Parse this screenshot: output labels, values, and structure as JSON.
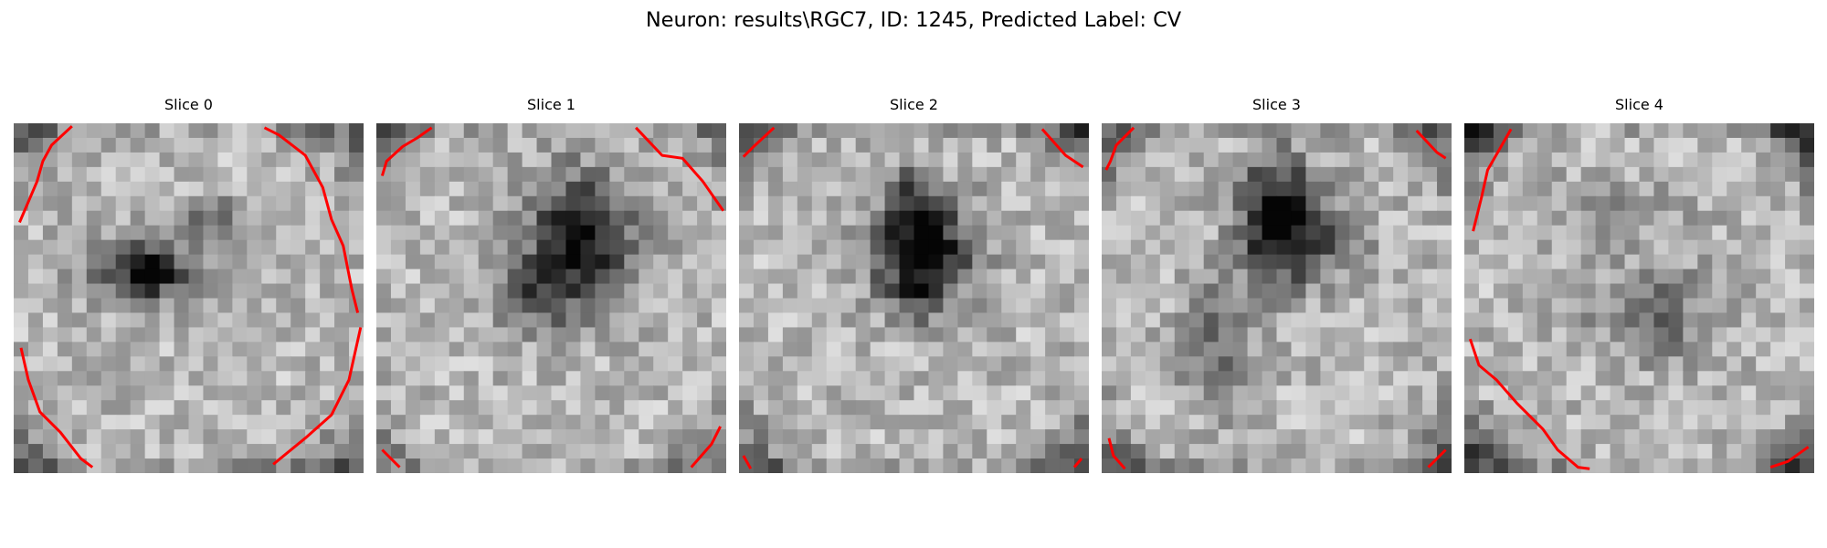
{
  "figure": {
    "title": "Neuron: results\\RGC7, ID: 1245, Predicted Label: CV"
  },
  "panels": [
    {
      "title": "Slice 0"
    },
    {
      "title": "Slice 1"
    },
    {
      "title": "Slice 2"
    },
    {
      "title": "Slice 3"
    },
    {
      "title": "Slice 4"
    }
  ],
  "colors": {
    "background": "#ffffff",
    "contour": "#ff0000",
    "colormap": "gray"
  }
}
